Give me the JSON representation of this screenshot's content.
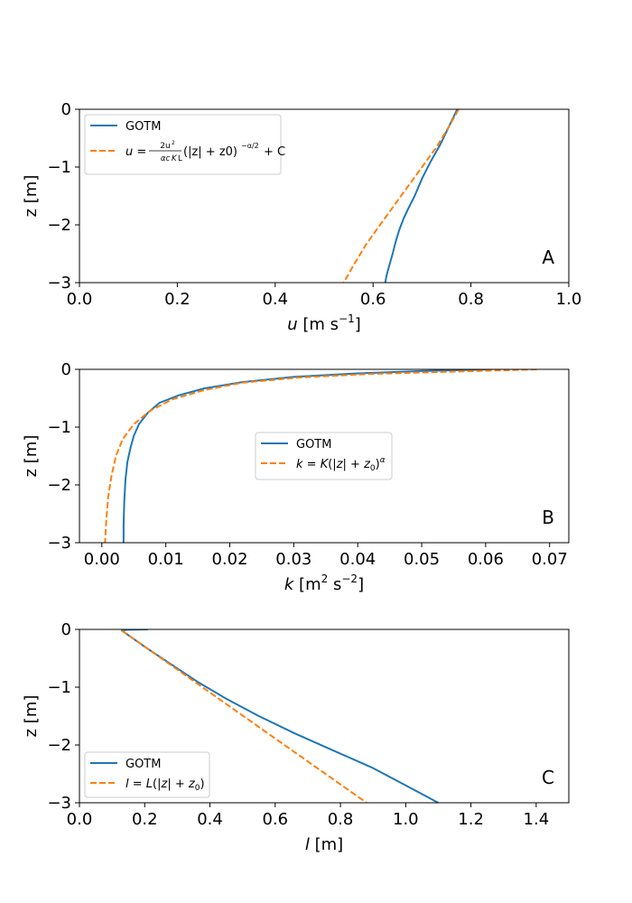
{
  "figure": {
    "background": "#ffffff"
  },
  "colors": {
    "gotm": "#1f77b4",
    "fit": "#ff7f0e"
  },
  "chart_data": [
    {
      "id": "A",
      "type": "line",
      "panel_label": "A",
      "xlabel_var": "u",
      "xlabel_unit_pre": " [m s",
      "xlabel_sup": "−1",
      "xlabel_unit_post": "]",
      "ylabel": "z [m]",
      "xlim": [
        0.0,
        1.0
      ],
      "ylim": [
        -3,
        0
      ],
      "xticks": [
        0.0,
        0.2,
        0.4,
        0.6,
        0.8,
        1.0
      ],
      "xtick_labels": [
        "0.0",
        "0.2",
        "0.4",
        "0.6",
        "0.8",
        "1.0"
      ],
      "yticks": [
        0,
        -1,
        -2,
        -3
      ],
      "ytick_labels": [
        "0",
        "−1",
        "−2",
        "−3"
      ],
      "legend": {
        "loc": "upper left",
        "entries": [
          "GOTM",
          "u = (2u*²/(αcμK½L))(|z| + z0)^(−α/2) + C"
        ]
      },
      "series": [
        {
          "name": "GOTM",
          "style": "solid",
          "color": "#1f77b4",
          "x": [
            0.772,
            0.755,
            0.738,
            0.718,
            0.7,
            0.685,
            0.673,
            0.662,
            0.653,
            0.646,
            0.64,
            0.635,
            0.63,
            0.627,
            0.625
          ],
          "y": [
            0.0,
            -0.3,
            -0.6,
            -0.9,
            -1.2,
            -1.5,
            -1.7,
            -1.9,
            -2.1,
            -2.3,
            -2.5,
            -2.65,
            -2.8,
            -2.9,
            -3.0
          ]
        },
        {
          "name": "u = (2u*²/(αcμK½L))(|z| + z0)^(−α/2) + C",
          "style": "dashed",
          "color": "#ff7f0e",
          "x": [
            0.775,
            0.755,
            0.73,
            0.7,
            0.67,
            0.64,
            0.61,
            0.585,
            0.56,
            0.54
          ],
          "y": [
            0.0,
            -0.3,
            -0.65,
            -1.0,
            -1.35,
            -1.7,
            -2.05,
            -2.35,
            -2.7,
            -3.0
          ]
        }
      ]
    },
    {
      "id": "B",
      "type": "line",
      "panel_label": "B",
      "xlabel_var": "k",
      "xlabel_unit_pre": " [m",
      "xlabel_sup": "2",
      "xlabel_unit_mid": " s",
      "xlabel_sup2": "−2",
      "xlabel_unit_post": "]",
      "ylabel": "z [m]",
      "xlim": [
        -0.0035,
        0.073
      ],
      "ylim": [
        -3,
        0
      ],
      "xticks": [
        0.0,
        0.01,
        0.02,
        0.03,
        0.04,
        0.05,
        0.06,
        0.07
      ],
      "xtick_labels": [
        "0.00",
        "0.01",
        "0.02",
        "0.03",
        "0.04",
        "0.05",
        "0.06",
        "0.07"
      ],
      "yticks": [
        0,
        -1,
        -2,
        -3
      ],
      "ytick_labels": [
        "0",
        "−1",
        "−2",
        "−3"
      ],
      "legend": {
        "loc": "center",
        "entries": [
          "GOTM",
          "k = K(|z| + z0)^α"
        ]
      },
      "series": [
        {
          "name": "GOTM",
          "style": "solid",
          "color": "#1f77b4",
          "x": [
            0.061,
            0.05,
            0.04,
            0.03,
            0.022,
            0.016,
            0.012,
            0.009,
            0.0072,
            0.0058,
            0.005,
            0.0045,
            0.004,
            0.0037,
            0.0035,
            0.0034,
            0.0034
          ],
          "y": [
            0.0,
            -0.03,
            -0.07,
            -0.13,
            -0.22,
            -0.33,
            -0.45,
            -0.58,
            -0.75,
            -0.95,
            -1.15,
            -1.35,
            -1.6,
            -1.9,
            -2.3,
            -2.7,
            -3.0
          ]
        },
        {
          "name": "k = K(|z| + z0)^α",
          "style": "dashed",
          "color": "#ff7f0e",
          "x": [
            0.068,
            0.055,
            0.042,
            0.031,
            0.022,
            0.016,
            0.011,
            0.0075,
            0.005,
            0.0033,
            0.0022,
            0.0015,
            0.001,
            0.0007,
            0.0005
          ],
          "y": [
            0.0,
            -0.04,
            -0.08,
            -0.14,
            -0.23,
            -0.36,
            -0.52,
            -0.72,
            -0.95,
            -1.2,
            -1.5,
            -1.85,
            -2.2,
            -2.6,
            -3.0
          ]
        }
      ]
    },
    {
      "id": "C",
      "type": "line",
      "panel_label": "C",
      "xlabel_var": "l",
      "xlabel_unit_pre": " [m]",
      "ylabel": "z [m]",
      "xlim": [
        0.0,
        1.5
      ],
      "ylim": [
        -3,
        0
      ],
      "xticks": [
        0.0,
        0.2,
        0.4,
        0.6,
        0.8,
        1.0,
        1.2,
        1.4
      ],
      "xtick_labels": [
        "0.0",
        "0.2",
        "0.4",
        "0.6",
        "0.8",
        "1.0",
        "1.2",
        "1.4"
      ],
      "yticks": [
        0,
        -1,
        -2,
        -3
      ],
      "ytick_labels": [
        "0",
        "−1",
        "−2",
        "−3"
      ],
      "legend": {
        "loc": "lower left",
        "entries": [
          "GOTM",
          "l = L(|z| + z0)"
        ]
      },
      "series": [
        {
          "name": "GOTM",
          "style": "solid",
          "color": "#1f77b4",
          "x": [
            0.21,
            0.15,
            0.13,
            0.2,
            0.28,
            0.36,
            0.45,
            0.55,
            0.66,
            0.78,
            0.9,
            1.0,
            1.1
          ],
          "y": [
            0.0,
            -0.005,
            -0.02,
            -0.3,
            -0.6,
            -0.9,
            -1.2,
            -1.5,
            -1.8,
            -2.1,
            -2.4,
            -2.7,
            -3.0
          ]
        },
        {
          "name": "l = L(|z| + z0)",
          "style": "dashed",
          "color": "#ff7f0e",
          "x": [
            0.13,
            0.88
          ],
          "y": [
            -0.02,
            -3.0
          ]
        }
      ]
    }
  ]
}
